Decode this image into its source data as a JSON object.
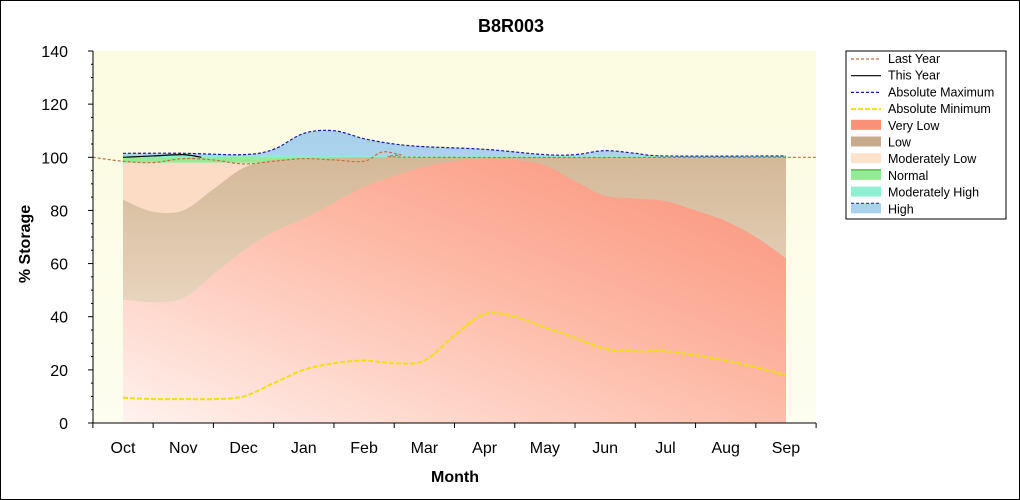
{
  "chart_data": {
    "type": "area",
    "title": "B8R003",
    "xlabel": "Month",
    "ylabel": "% Storage",
    "ylim": [
      0,
      140
    ],
    "yticks": [
      0,
      20,
      40,
      60,
      80,
      100,
      120,
      140
    ],
    "categories": [
      "Oct",
      "Nov",
      "Dec",
      "Jan",
      "Feb",
      "Mar",
      "Apr",
      "May",
      "Jun",
      "Jul",
      "Aug",
      "Sep"
    ],
    "grid": false,
    "legend_position": "right",
    "bands": [
      {
        "name": "Very Low",
        "color": "#fa8c78",
        "points": [
          [
            0,
            46.5
          ],
          [
            0.5,
            45.5
          ],
          [
            1,
            47
          ],
          [
            1.5,
            56
          ],
          [
            2,
            65
          ],
          [
            2.5,
            72
          ],
          [
            3,
            77
          ],
          [
            3.5,
            83
          ],
          [
            4,
            89
          ],
          [
            4.5,
            93
          ],
          [
            5,
            96.5
          ],
          [
            5.5,
            98.5
          ],
          [
            6,
            99.5
          ],
          [
            6.5,
            99
          ],
          [
            7,
            97
          ],
          [
            7.5,
            91
          ],
          [
            8,
            85.5
          ],
          [
            8.5,
            84.5
          ],
          [
            9,
            83.5
          ],
          [
            9.5,
            80
          ],
          [
            10,
            76
          ],
          [
            10.5,
            70
          ],
          [
            11,
            62
          ]
        ]
      },
      {
        "name": "Low",
        "color": "#c8aa8c",
        "points": [
          [
            0,
            84
          ],
          [
            0.5,
            79.5
          ],
          [
            1,
            80
          ],
          [
            1.5,
            88
          ],
          [
            2,
            96
          ],
          [
            2.5,
            99
          ],
          [
            3,
            99.5
          ],
          [
            3.5,
            99.5
          ],
          [
            4,
            100
          ],
          [
            11,
            100
          ]
        ]
      },
      {
        "name": "Moderately Low",
        "color": "#fcdcc4",
        "points": [
          [
            0,
            98
          ],
          [
            11,
            98
          ]
        ]
      },
      {
        "name": "Normal",
        "color": "#96ea96",
        "points": [
          [
            0,
            100
          ],
          [
            11,
            100
          ]
        ]
      },
      {
        "name": "Moderately High",
        "color": "#8ef0d0",
        "points": [
          [
            0,
            100.5
          ],
          [
            11,
            100.5
          ]
        ]
      },
      {
        "name": "High",
        "color": "#a8d2ee",
        "points": [
          [
            0,
            101.5
          ],
          [
            1,
            101.5
          ],
          [
            2,
            101
          ],
          [
            2.5,
            103
          ],
          [
            3,
            109
          ],
          [
            3.5,
            110
          ],
          [
            4,
            107
          ],
          [
            4.5,
            105
          ],
          [
            5,
            104
          ],
          [
            6,
            103
          ],
          [
            7,
            101
          ],
          [
            7.5,
            101
          ],
          [
            8,
            102.5
          ],
          [
            8.5,
            101.5
          ],
          [
            9,
            100.5
          ],
          [
            11,
            100.5
          ]
        ]
      }
    ],
    "series": [
      {
        "name": "Last Year",
        "color": "#c07040",
        "dash": "3,2",
        "points": [
          [
            -0.5,
            100
          ],
          [
            0,
            98.5
          ],
          [
            0.5,
            98
          ],
          [
            1,
            99.5
          ],
          [
            1.5,
            99
          ],
          [
            2,
            97.5
          ],
          [
            2.5,
            98.5
          ],
          [
            3,
            99.5
          ],
          [
            3.5,
            99
          ],
          [
            4,
            98.5
          ],
          [
            4.3,
            102
          ],
          [
            4.6,
            101
          ],
          [
            5,
            100
          ],
          [
            11.5,
            100
          ]
        ]
      },
      {
        "name": "This Year",
        "color": "#000000",
        "dash": "",
        "points": [
          [
            0,
            100
          ],
          [
            0.5,
            100.5
          ],
          [
            1,
            101
          ],
          [
            1.3,
            100
          ]
        ]
      },
      {
        "name": "Absolute Maximum",
        "color": "#1a1aa6",
        "dash": "3,2",
        "points": [
          [
            0,
            101.5
          ],
          [
            1,
            101.5
          ],
          [
            2,
            101
          ],
          [
            2.5,
            103
          ],
          [
            3,
            109
          ],
          [
            3.5,
            110
          ],
          [
            4,
            107
          ],
          [
            4.5,
            105
          ],
          [
            5,
            104
          ],
          [
            6,
            103
          ],
          [
            7,
            101
          ],
          [
            7.5,
            101
          ],
          [
            8,
            102.5
          ],
          [
            8.5,
            101.5
          ],
          [
            9,
            100.5
          ],
          [
            11,
            100.5
          ]
        ]
      },
      {
        "name": "Absolute Minimum",
        "color": "#f0e010",
        "dash": "5,2",
        "points": [
          [
            0,
            9.5
          ],
          [
            0.5,
            9
          ],
          [
            1,
            9
          ],
          [
            1.5,
            9
          ],
          [
            2,
            10
          ],
          [
            2.5,
            15
          ],
          [
            3,
            20
          ],
          [
            3.5,
            22.5
          ],
          [
            4,
            23.5
          ],
          [
            4.5,
            22.5
          ],
          [
            5,
            23.5
          ],
          [
            5.5,
            33
          ],
          [
            6,
            41
          ],
          [
            6.5,
            40
          ],
          [
            7,
            36
          ],
          [
            7.5,
            32
          ],
          [
            8,
            28
          ],
          [
            8.5,
            27
          ],
          [
            9,
            27
          ],
          [
            9.5,
            25.5
          ],
          [
            10,
            23.5
          ],
          [
            10.5,
            21
          ],
          [
            11,
            18
          ]
        ]
      }
    ],
    "legend": [
      "Last Year",
      "This Year",
      "Absolute Maximum",
      "Absolute Minimum",
      "Very Low",
      "Low",
      "Moderately Low",
      "Normal",
      "Moderately High",
      "High"
    ]
  }
}
